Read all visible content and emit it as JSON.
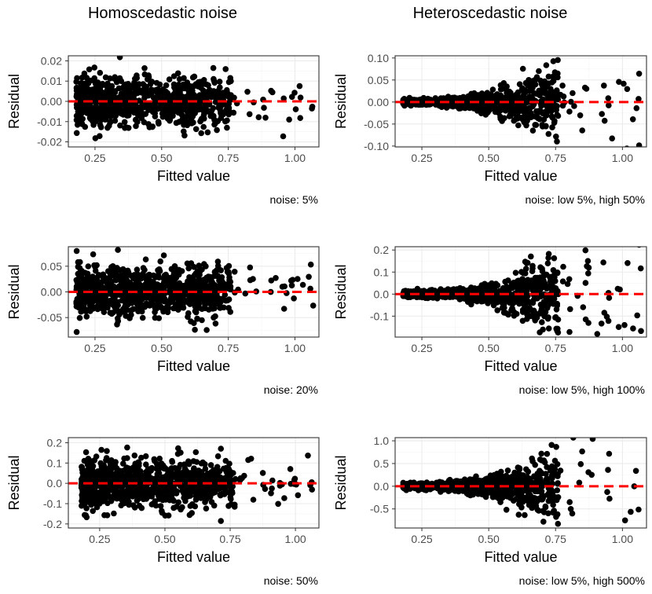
{
  "column_titles": [
    "Homoscedastic noise",
    "Heteroscedastic noise"
  ],
  "chart_data": [
    {
      "id": "homo5",
      "type": "scatter",
      "column": "Homoscedastic noise",
      "xlabel": "Fitted value",
      "ylabel": "Residual",
      "caption": "noise: 5%",
      "xlim": [
        0.15,
        1.09
      ],
      "ylim": [
        -0.0225,
        0.0225
      ],
      "xticks": [
        0.25,
        0.5,
        0.75,
        1.0
      ],
      "xtick_labels": [
        "0.25",
        "0.50",
        "0.75",
        "1.00"
      ],
      "yticks": [
        -0.02,
        -0.01,
        0.0,
        0.01,
        0.02
      ],
      "ytick_labels": [
        "-0.02",
        "-0.01",
        "0.00",
        "0.01",
        "0.02"
      ],
      "hetero": false,
      "noise_scale": 0.0095,
      "reference_line": 0,
      "grid": true
    },
    {
      "id": "hetero50",
      "type": "scatter",
      "column": "Heteroscedastic noise",
      "xlabel": "Fitted value",
      "ylabel": "Residual",
      "caption": "noise: low 5%, high 50%",
      "xlim": [
        0.15,
        1.09
      ],
      "ylim": [
        -0.102,
        0.105
      ],
      "xticks": [
        0.25,
        0.5,
        0.75,
        1.0
      ],
      "xtick_labels": [
        "0.25",
        "0.50",
        "0.75",
        "1.00"
      ],
      "yticks": [
        -0.1,
        -0.05,
        0.0,
        0.05,
        0.1
      ],
      "ytick_labels": [
        "-0.10",
        "-0.05",
        "0.00",
        "0.05",
        "0.10"
      ],
      "hetero": true,
      "noise_scale": 0.1,
      "reference_line": 0,
      "grid": true
    },
    {
      "id": "homo20",
      "type": "scatter",
      "column": "Homoscedastic noise",
      "xlabel": "Fitted value",
      "ylabel": "Residual",
      "caption": "noise: 20%",
      "xlim": [
        0.15,
        1.09
      ],
      "ylim": [
        -0.088,
        0.088
      ],
      "xticks": [
        0.25,
        0.5,
        0.75,
        1.0
      ],
      "xtick_labels": [
        "0.25",
        "0.50",
        "0.75",
        "1.00"
      ],
      "yticks": [
        -0.05,
        0.0,
        0.05
      ],
      "ytick_labels": [
        "-0.05",
        "0.00",
        "0.05"
      ],
      "hetero": false,
      "noise_scale": 0.038,
      "reference_line": 0,
      "grid": true
    },
    {
      "id": "hetero100",
      "type": "scatter",
      "column": "Heteroscedastic noise",
      "xlabel": "Fitted value",
      "ylabel": "Residual",
      "caption": "noise: low 5%, high 100%",
      "xlim": [
        0.15,
        1.09
      ],
      "ylim": [
        -0.195,
        0.215
      ],
      "xticks": [
        0.25,
        0.5,
        0.75,
        1.0
      ],
      "xtick_labels": [
        "0.25",
        "0.50",
        "0.75",
        "1.00"
      ],
      "yticks": [
        -0.1,
        0.0,
        0.1,
        0.2
      ],
      "ytick_labels": [
        "-0.1",
        "0.0",
        "0.1",
        "0.2"
      ],
      "hetero": true,
      "noise_scale": 0.2,
      "reference_line": 0,
      "grid": true
    },
    {
      "id": "homo50",
      "type": "scatter",
      "column": "Homoscedastic noise",
      "xlabel": "Fitted value",
      "ylabel": "Residual",
      "caption": "noise: 50%",
      "xlim": [
        0.13,
        1.09
      ],
      "ylim": [
        -0.22,
        0.225
      ],
      "xticks": [
        0.25,
        0.5,
        0.75,
        1.0
      ],
      "xtick_labels": [
        "0.25",
        "0.50",
        "0.75",
        "1.00"
      ],
      "yticks": [
        -0.2,
        -0.1,
        0.0,
        0.1,
        0.2
      ],
      "ytick_labels": [
        "-0.2",
        "-0.1",
        "0.0",
        "0.1",
        "0.2"
      ],
      "hetero": false,
      "noise_scale": 0.095,
      "reference_line": 0,
      "grid": true
    },
    {
      "id": "hetero500",
      "type": "scatter",
      "column": "Heteroscedastic noise",
      "xlabel": "Fitted value",
      "ylabel": "Residual",
      "caption": "noise: low 5%, high 500%",
      "xlim": [
        0.15,
        1.09
      ],
      "ylim": [
        -0.92,
        1.07
      ],
      "xticks": [
        0.25,
        0.5,
        0.75,
        1.0
      ],
      "xtick_labels": [
        "0.25",
        "0.50",
        "0.75",
        "1.00"
      ],
      "yticks": [
        -0.5,
        0.0,
        0.5,
        1.0
      ],
      "ytick_labels": [
        "-0.5",
        "0.0",
        "0.5",
        "1.0"
      ],
      "hetero": true,
      "noise_scale": 1.0,
      "reference_line": 0,
      "grid": true
    }
  ]
}
